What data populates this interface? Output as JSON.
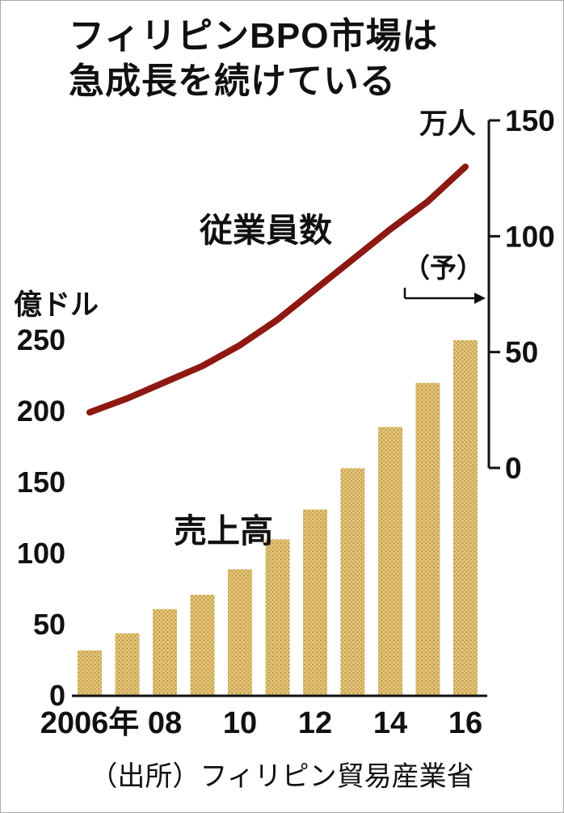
{
  "figure": {
    "title_line1": "フィリピンBPO市場は",
    "title_line2": "急成長を続けている",
    "forecast_note": "（予）",
    "source": "（出所）フィリピン貿易産業省"
  },
  "chart_data": {
    "type": "bar+line combo",
    "categories": [
      2006,
      2007,
      2008,
      2009,
      2010,
      2011,
      2012,
      2013,
      2014,
      2015,
      2016
    ],
    "x_tick_labels": [
      "2006年",
      "08",
      "10",
      "12",
      "14",
      "16"
    ],
    "x_tick_positions": [
      0,
      2,
      4,
      6,
      8,
      10
    ],
    "series": [
      {
        "name": "売上高",
        "type": "bar",
        "axis": "left",
        "unit": "億ドル",
        "values": [
          32,
          44,
          61,
          71,
          89,
          110,
          131,
          160,
          189,
          220,
          250
        ],
        "fill": "#e2c47a",
        "dot": "#bb8f3a"
      },
      {
        "name": "従業員数",
        "type": "line",
        "axis": "right",
        "unit": "万人",
        "values": [
          24,
          30,
          37,
          44,
          53,
          64,
          77,
          90,
          103,
          115,
          130
        ],
        "color": "#8e1812"
      }
    ],
    "left_axis": {
      "label": "億ドル",
      "ticks": [
        0,
        50,
        100,
        150,
        200,
        250
      ],
      "range": [
        0,
        250
      ]
    },
    "right_axis": {
      "label": "万人",
      "ticks": [
        0,
        50,
        100,
        150
      ],
      "range": [
        0,
        150
      ]
    },
    "notes": "2015-16の値は予測（予）",
    "grid": false,
    "legend": "inline text labels"
  }
}
